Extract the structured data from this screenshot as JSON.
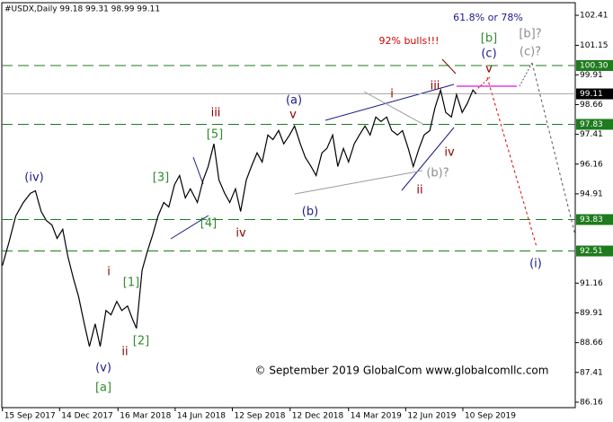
{
  "chart_data": {
    "type": "line",
    "title": "#USDX,Daily  99.18 99.31 98.99 99.11",
    "color": "#000000",
    "x": [
      "2017-09-15",
      "2017-09-25",
      "2017-10-06",
      "2017-10-18",
      "2017-10-29",
      "2017-11-06",
      "2017-11-15",
      "2017-11-23",
      "2017-12-02",
      "2017-12-10",
      "2017-12-19",
      "2017-12-27",
      "2018-01-05",
      "2018-01-13",
      "2018-01-22",
      "2018-01-30",
      "2018-02-08",
      "2018-02-16",
      "2018-02-25",
      "2018-03-05",
      "2018-03-14",
      "2018-03-22",
      "2018-03-31",
      "2018-04-08",
      "2018-04-14",
      "2018-04-23",
      "2018-05-01",
      "2018-05-10",
      "2018-05-18",
      "2018-05-27",
      "2018-06-04",
      "2018-06-13",
      "2018-06-21",
      "2018-06-30",
      "2018-07-08",
      "2018-07-19",
      "2018-07-28",
      "2018-08-05",
      "2018-08-14",
      "2018-08-22",
      "2018-08-31",
      "2018-09-08",
      "2018-09-17",
      "2018-09-25",
      "2018-10-04",
      "2018-10-12",
      "2018-10-21",
      "2018-10-29",
      "2018-11-07",
      "2018-11-15",
      "2018-11-24",
      "2018-12-02",
      "2018-12-11",
      "2018-12-19",
      "2018-12-28",
      "2019-01-05",
      "2019-01-14",
      "2019-01-22",
      "2019-01-31",
      "2019-02-08",
      "2019-02-17",
      "2019-02-25",
      "2019-03-06",
      "2019-03-14",
      "2019-03-23",
      "2019-03-31",
      "2019-04-09",
      "2019-04-17",
      "2019-04-26",
      "2019-05-04",
      "2019-05-13",
      "2019-05-21",
      "2019-05-30",
      "2019-06-07",
      "2019-06-16",
      "2019-06-24",
      "2019-07-03",
      "2019-07-11",
      "2019-07-20",
      "2019-07-28",
      "2019-08-06",
      "2019-08-14",
      "2019-08-23",
      "2019-08-31",
      "2019-09-09",
      "2019-09-17",
      "2019-09-26",
      "2019-10-01"
    ],
    "values": [
      91.9,
      92.85,
      93.98,
      94.55,
      94.93,
      95.04,
      94.17,
      93.79,
      93.6,
      93.04,
      93.42,
      92.28,
      91.34,
      90.58,
      89.45,
      88.5,
      89.45,
      88.5,
      90.01,
      89.83,
      90.39,
      90.01,
      90.2,
      89.64,
      89.26,
      91.71,
      92.47,
      93.23,
      93.98,
      94.55,
      94.36,
      95.3,
      95.68,
      94.74,
      95.12,
      94.55,
      95.49,
      96.06,
      97.01,
      95.49,
      94.93,
      94.55,
      95.12,
      94.17,
      95.49,
      96.06,
      96.63,
      96.25,
      97.38,
      97.19,
      97.57,
      97.01,
      97.38,
      97.76,
      97.01,
      96.44,
      96.06,
      95.68,
      96.63,
      96.82,
      97.38,
      96.06,
      96.82,
      96.25,
      97.01,
      97.38,
      97.76,
      97.38,
      98.14,
      97.95,
      98.14,
      97.57,
      97.38,
      97.57,
      96.82,
      96.06,
      96.82,
      97.38,
      97.57,
      98.52,
      99.27,
      98.33,
      98.14,
      99.08,
      98.33,
      98.71,
      99.27,
      99.11
    ],
    "xlim": [
      "2017-09-14",
      "2020-03-05"
    ],
    "xticks": [
      {
        "value": "2017-09-15",
        "label": "15 Sep 2017"
      },
      {
        "value": "2017-12-14",
        "label": "14 Dec 2017"
      },
      {
        "value": "2018-03-16",
        "label": "16 Mar 2018"
      },
      {
        "value": "2018-06-14",
        "label": "14 Jun 2018"
      },
      {
        "value": "2018-09-12",
        "label": "12 Sep 2018"
      },
      {
        "value": "2018-12-12",
        "label": "12 Dec 2018"
      },
      {
        "value": "2019-03-14",
        "label": "14 Mar 2019"
      },
      {
        "value": "2019-06-12",
        "label": "12 Jun 2019"
      },
      {
        "value": "2019-09-10",
        "label": "10 Sep 2019"
      }
    ],
    "ylim": [
      85.93,
      102.94
    ],
    "yticks": [
      102.41,
      101.15,
      99.91,
      98.66,
      97.41,
      96.16,
      94.91,
      91.16,
      89.91,
      88.66,
      87.41,
      86.16
    ],
    "levels": [
      {
        "value": 100.3,
        "label": "100.30"
      },
      97.83,
      93.83,
      92.51
    ],
    "level_color": "#1e7b1e",
    "last_price": 99.11,
    "annotations": [
      {
        "text": "(iv)",
        "color": "#1a1a8c"
      },
      {
        "text": "i",
        "color": "#8b0000"
      },
      {
        "text": "[1]",
        "color": "#2e8b2e"
      },
      {
        "text": "[2]",
        "color": "#2e8b2e"
      },
      {
        "text": "ii",
        "color": "#8b0000"
      },
      {
        "text": "(v)",
        "color": "#1a1a8c"
      },
      {
        "text": "[a]",
        "color": "#2e8b2e"
      },
      {
        "text": "[3]",
        "color": "#2e8b2e"
      },
      {
        "text": "[4]",
        "color": "#2e8b2e"
      },
      {
        "text": "[5]",
        "color": "#2e8b2e"
      },
      {
        "text": "iii",
        "color": "#8b0000"
      },
      {
        "text": "iv",
        "color": "#8b0000"
      },
      {
        "text": "(a)",
        "color": "#1a1a8c"
      },
      {
        "text": "v",
        "color": "#8b0000"
      },
      {
        "text": "(b)",
        "color": "#1a1a8c"
      },
      {
        "text": "i",
        "color": "#8b0000"
      },
      {
        "text": "iii",
        "color": "#8b0000"
      },
      {
        "text": "iv",
        "color": "#8b0000"
      },
      {
        "text": "ii",
        "color": "#8b0000"
      },
      {
        "text": "(b)?",
        "color": "#8c8c8c"
      },
      {
        "text": "92% bulls!!!",
        "color": "#d00000"
      },
      {
        "text": "61.8% or 78%",
        "color": "#1a1a8c"
      },
      {
        "text": "[b]",
        "color": "#2e8b2e"
      },
      {
        "text": "(c)",
        "color": "#1a1a8c"
      },
      {
        "text": "v",
        "color": "#8b0000"
      },
      {
        "text": "[b]?",
        "color": "#8c8c8c"
      },
      {
        "text": "(c)?",
        "color": "#8c8c8c"
      },
      {
        "text": "(i)",
        "color": "#1a1a8c"
      },
      {
        "text": "© September 2019 GlobalCom www.globalcomllc.com",
        "color": "#000000"
      }
    ]
  }
}
